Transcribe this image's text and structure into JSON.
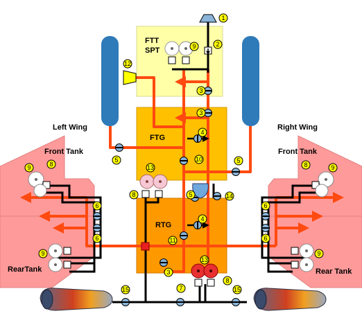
{
  "tanks": {
    "ftt": {
      "line1": "FTT",
      "line2": "SPT"
    },
    "ftg": "FTG",
    "rtg": "RTG"
  },
  "left_wing": {
    "title": "Left Wing",
    "front": "Front Tank",
    "rear": "RearTank"
  },
  "right_wing": {
    "title": "Right Wing",
    "front": "Front Tank",
    "rear": "Rear Tank"
  },
  "colors": {
    "ftt": "#ffffa8",
    "ftg": "#ffc000",
    "rtg": "#ff9900",
    "wing": "#ff9a9a",
    "pipe": "#ff4a10",
    "line": "#000000",
    "badge": "#ffff00",
    "valve": "#8ab4d8",
    "pump_white": "#ffffff",
    "pump_red": "#e83030",
    "cylinder": "#2f7ab8",
    "hopper": "#6ea8dc"
  },
  "callouts": {
    "c1": "1",
    "c2": "2",
    "c3a": "3",
    "c3b": "3",
    "c3c": "3",
    "c4a": "4",
    "c4b": "4",
    "c5a": "5",
    "c5b": "5",
    "c5c": "5",
    "c6a": "6",
    "c6b": "6",
    "c6c": "6",
    "c6d": "6",
    "c7": "7",
    "c8a": "8",
    "c8b": "8",
    "c8c": "8",
    "c8d": "8",
    "c9a": "9",
    "c9b": "9",
    "c9c": "9",
    "c9d": "9",
    "c9e": "9",
    "c10": "10",
    "c11": "11",
    "c12": "12",
    "c13a": "13",
    "c13b": "13",
    "c14": "14",
    "c15a": "15",
    "c15b": "15"
  }
}
